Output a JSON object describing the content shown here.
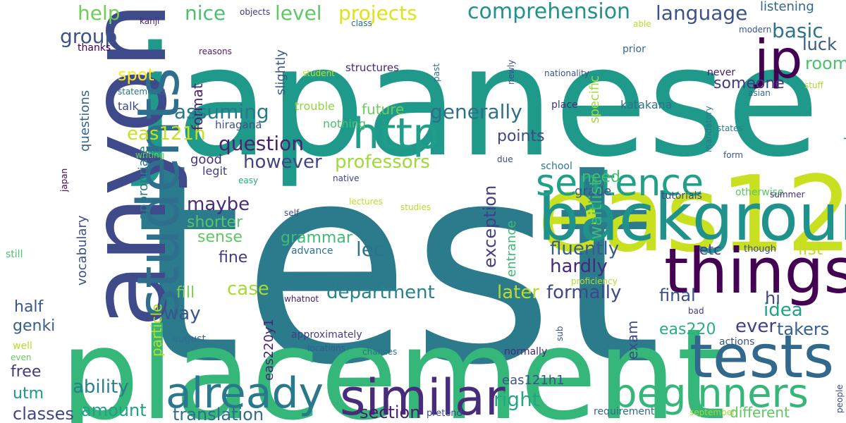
{
  "words": [
    {
      "text": "test",
      "color": "#2b7b8c"
    },
    {
      "text": "japanese",
      "color": "#1f9a8a"
    },
    {
      "text": "placement",
      "color": "#35b779"
    },
    {
      "text": "anyone",
      "color": "#3e4a89"
    },
    {
      "text": "eas120",
      "color": "#c8e020"
    },
    {
      "text": "students",
      "color": "#2e6f8e"
    },
    {
      "text": "background",
      "color": "#20928c"
    },
    {
      "text": "things",
      "color": "#440154"
    },
    {
      "text": "tests",
      "color": "#31688e"
    },
    {
      "text": "similar",
      "color": "#472c7a"
    },
    {
      "text": "already",
      "color": "#2a788e"
    },
    {
      "text": "beginners",
      "color": "#35b779"
    },
    {
      "text": "sentence",
      "color": "#1fa187"
    },
    {
      "text": "http",
      "color": "#1f9e89"
    },
    {
      "text": "jp",
      "color": "#440154"
    },
    {
      "text": "comprehension",
      "color": "#21918c"
    },
    {
      "text": "language",
      "color": "#3b528b"
    },
    {
      "text": "projects",
      "color": "#dde318"
    },
    {
      "text": "level",
      "color": "#5ec962"
    },
    {
      "text": "nice",
      "color": "#4ac16d"
    },
    {
      "text": "help",
      "color": "#6ece58"
    },
    {
      "text": "group",
      "color": "#3b528b"
    },
    {
      "text": "basic",
      "color": "#2c728e"
    },
    {
      "text": "listening",
      "color": "#31688e"
    },
    {
      "text": "assuming",
      "color": "#2a788e"
    },
    {
      "text": "generally",
      "color": "#2d708e"
    },
    {
      "text": "question",
      "color": "#482374"
    },
    {
      "text": "however",
      "color": "#414487"
    },
    {
      "text": "professors",
      "color": "#a0da39"
    },
    {
      "text": "eas121h",
      "color": "#c8e020"
    },
    {
      "text": "maybe",
      "color": "#472d7b"
    },
    {
      "text": "fluently",
      "color": "#365c8d"
    },
    {
      "text": "hardly",
      "color": "#482878"
    },
    {
      "text": "lec",
      "color": "#2c728e"
    },
    {
      "text": "exception",
      "color": "#433e85"
    },
    {
      "text": "department",
      "color": "#26828e"
    },
    {
      "text": "formally",
      "color": "#3e4989"
    },
    {
      "text": "later",
      "color": "#b5de2b"
    },
    {
      "text": "case",
      "color": "#a5db36"
    },
    {
      "text": "way",
      "color": "#39558c"
    },
    {
      "text": "idea",
      "color": "#1fa287"
    },
    {
      "text": "ever",
      "color": "#424086"
    },
    {
      "text": "exam",
      "color": "#3e4a89"
    },
    {
      "text": "eas220",
      "color": "#29af7f"
    },
    {
      "text": "takers",
      "color": "#355f8d"
    },
    {
      "text": "final",
      "color": "#3b528b"
    },
    {
      "text": "list",
      "color": "#c2df23"
    },
    {
      "text": "hi",
      "color": "#3f4788"
    },
    {
      "text": "etc",
      "color": "#433e85"
    },
    {
      "text": "room",
      "color": "#4ac16d"
    },
    {
      "text": "luck",
      "color": "#38588c"
    },
    {
      "text": "someone",
      "color": "#443983"
    },
    {
      "text": "ability",
      "color": "#277f8e"
    },
    {
      "text": "amount",
      "color": "#1fa088"
    },
    {
      "text": "right",
      "color": "#22a785"
    },
    {
      "text": "translation",
      "color": "#2e6e8e"
    },
    {
      "text": "section",
      "color": "#481d6f"
    },
    {
      "text": "classes",
      "color": "#404688"
    },
    {
      "text": "free",
      "color": "#453882"
    },
    {
      "text": "utm",
      "color": "#1f958b"
    },
    {
      "text": "genki",
      "color": "#355f8d"
    },
    {
      "text": "half",
      "color": "#39568c"
    },
    {
      "text": "fill",
      "color": "#7ad151"
    },
    {
      "text": "fine",
      "color": "#443a83"
    },
    {
      "text": "sense",
      "color": "#5ec962"
    },
    {
      "text": "shorter",
      "color": "#54c568"
    },
    {
      "text": "grammar",
      "color": "#3dbc74"
    },
    {
      "text": "points",
      "color": "#3f4889"
    },
    {
      "text": "need",
      "color": "#44bf70"
    },
    {
      "text": "grade",
      "color": "#39558c"
    },
    {
      "text": "good",
      "color": "#46307e"
    },
    {
      "text": "legit",
      "color": "#424086"
    },
    {
      "text": "spot",
      "color": "#fde725"
    },
    {
      "text": "talk",
      "color": "#3e4a89"
    },
    {
      "text": "future",
      "color": "#6ccd5a"
    },
    {
      "text": "waitlist",
      "color": "#3dbc74"
    },
    {
      "text": "different",
      "color": "#5ec962"
    },
    {
      "text": "eas121h1",
      "color": "#3b528b"
    },
    {
      "text": "eas220y1",
      "color": "#482475"
    },
    {
      "text": "questions",
      "color": "#33638d"
    },
    {
      "text": "vocabulary",
      "color": "#3d4e8a"
    },
    {
      "text": "appropriate",
      "color": "#297a8e"
    },
    {
      "text": "particle",
      "color": "#b8de29"
    },
    {
      "text": "format",
      "color": "#482173"
    },
    {
      "text": "slightly",
      "color": "#38598c"
    },
    {
      "text": "specific",
      "color": "#a2da37"
    },
    {
      "text": "entrance",
      "color": "#3aba76"
    },
    {
      "text": "general",
      "color": "#2a788e"
    },
    {
      "text": "trouble",
      "color": "#90d743"
    },
    {
      "text": "hiragana",
      "color": "#3b528b"
    },
    {
      "text": "nothing",
      "color": "#4ac16d"
    },
    {
      "text": "place",
      "color": "#46327e"
    },
    {
      "text": "katakana",
      "color": "#2c728e"
    },
    {
      "text": "structures",
      "color": "#482878"
    },
    {
      "text": "thanks",
      "color": "#440154"
    },
    {
      "text": "kanji",
      "color": "#482475"
    },
    {
      "text": "objects",
      "color": "#453781"
    },
    {
      "text": "class",
      "color": "#2f6c8e"
    },
    {
      "text": "able",
      "color": "#b5de2b"
    },
    {
      "text": "modern",
      "color": "#3b528b"
    },
    {
      "text": "prior",
      "color": "#31688e"
    },
    {
      "text": "reasons",
      "color": "#481b6d"
    },
    {
      "text": "student",
      "color": "#c0df25"
    },
    {
      "text": "past",
      "color": "#2e6e8e"
    },
    {
      "text": "newly",
      "color": "#3c4f8a"
    },
    {
      "text": "nationality",
      "color": "#3a538b"
    },
    {
      "text": "never",
      "color": "#481c6e"
    },
    {
      "text": "stuff",
      "color": "#a8db34"
    },
    {
      "text": "asian",
      "color": "#31688e"
    },
    {
      "text": "statements",
      "color": "#2d718e"
    },
    {
      "text": "writing",
      "color": "#6ccd5a"
    },
    {
      "text": "japan",
      "color": "#440154"
    },
    {
      "text": "due",
      "color": "#3d4e8a"
    },
    {
      "text": "school",
      "color": "#2a788e"
    },
    {
      "text": "easy",
      "color": "#26ad81"
    },
    {
      "text": "native",
      "color": "#3f4788"
    },
    {
      "text": "lectures",
      "color": "#bddf26"
    },
    {
      "text": "self",
      "color": "#3e4989"
    },
    {
      "text": "studies",
      "color": "#b5de2b"
    },
    {
      "text": "tutorials",
      "color": "#3f4889"
    },
    {
      "text": "otherwise",
      "color": "#58c765"
    },
    {
      "text": "summer",
      "color": "#472a7a"
    },
    {
      "text": "mandatory",
      "color": "#2a788e"
    },
    {
      "text": "form",
      "color": "#39568c"
    },
    {
      "text": "states",
      "color": "#277f8e"
    },
    {
      "text": "though",
      "color": "#3f4788"
    },
    {
      "text": "still",
      "color": "#4ac16d"
    },
    {
      "text": "advance",
      "color": "#2c728e"
    },
    {
      "text": "whatnot",
      "color": "#481f70"
    },
    {
      "text": "proficiency",
      "color": "#b2dd2d"
    },
    {
      "text": "bad",
      "color": "#443983"
    },
    {
      "text": "approximately",
      "color": "#433e85"
    },
    {
      "text": "locations",
      "color": "#365d8d"
    },
    {
      "text": "august",
      "color": "#2e6e8e"
    },
    {
      "text": "well",
      "color": "#b8de29"
    },
    {
      "text": "even",
      "color": "#63cb5f"
    },
    {
      "text": "chances",
      "color": "#2e6f8e"
    },
    {
      "text": "normally",
      "color": "#482979"
    },
    {
      "text": "sub",
      "color": "#3b518b"
    },
    {
      "text": "actions",
      "color": "#3a548c"
    },
    {
      "text": "pretend",
      "color": "#3f4788"
    },
    {
      "text": "requirement",
      "color": "#31688e"
    },
    {
      "text": "september",
      "color": "#a0da39"
    },
    {
      "text": "people",
      "color": "#3e4a89"
    },
    {
      "text": "events",
      "color": "#26828e"
    }
  ]
}
